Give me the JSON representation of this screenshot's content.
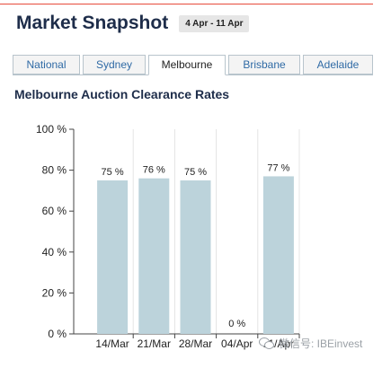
{
  "header": {
    "title": "Market Snapshot",
    "date_range": "4 Apr - 11 Apr"
  },
  "tabs": [
    {
      "label": "National",
      "active": false
    },
    {
      "label": "Sydney",
      "active": false
    },
    {
      "label": "Melbourne",
      "active": true
    },
    {
      "label": "Brisbane",
      "active": false
    },
    {
      "label": "Adelaide",
      "active": false
    }
  ],
  "watermark": {
    "text": "微信号: IBEinvest",
    "icon": "wechat-icon"
  },
  "colors": {
    "bar": "#bcd3db",
    "title": "#1e2d4a",
    "tab_link": "#2f6aa5",
    "accent_rule": "#e74c3c"
  },
  "chart_data": {
    "type": "bar",
    "title": "Melbourne Auction Clearance Rates",
    "xlabel": "",
    "ylabel": "",
    "categories": [
      "14/Mar",
      "21/Mar",
      "28/Mar",
      "04/Apr",
      "11/Apr"
    ],
    "values": [
      75,
      76,
      75,
      0,
      77
    ],
    "data_labels": [
      "75 %",
      "76 %",
      "75 %",
      "0 %",
      "77 %"
    ],
    "ylim": [
      0,
      100
    ],
    "yticks": [
      0,
      20,
      40,
      60,
      80,
      100
    ],
    "ytick_labels": [
      "0 %",
      "20 %",
      "40 %",
      "60 %",
      "80 %",
      "100 %"
    ],
    "grid": "vertical",
    "legend": "none"
  }
}
